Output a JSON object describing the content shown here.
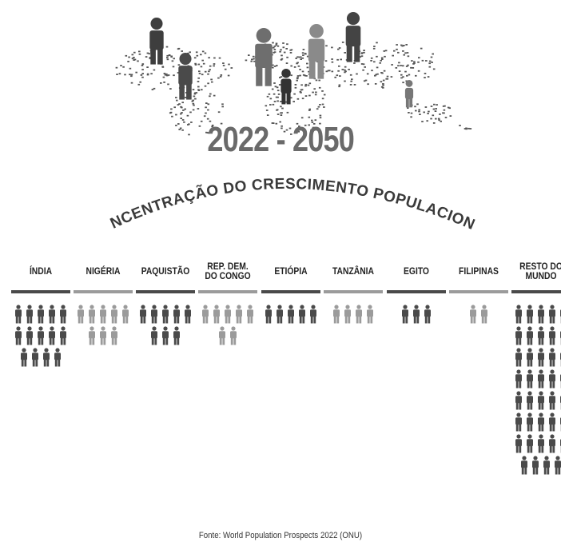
{
  "header": {
    "period": "2022 - 2050",
    "subtitle": "CONCENTRAÇÃO DO CRESCIMENTO POPULACIONAL"
  },
  "footer": {
    "source": "Fonte: World Population Prospects 2022 (ONU)"
  },
  "colors": {
    "dark": "#4a4a4a",
    "light": "#9b9b9b"
  },
  "chart_data": {
    "type": "bar",
    "categories": [
      "ÍNDIA",
      "NIGÉRIA",
      "PAQUISTÃO",
      "REP. DEM.\nDO CONGO",
      "ETIÓPIA",
      "TANZÂNIA",
      "EGITO",
      "FILIPINAS",
      "RESTO DO\nMUNDO"
    ],
    "values": [
      14,
      8,
      8,
      7,
      5,
      4,
      3,
      2,
      39
    ],
    "shades": [
      "dark",
      "light",
      "dark",
      "light",
      "dark",
      "light",
      "dark",
      "light",
      "dark"
    ],
    "unit": "person icons"
  }
}
